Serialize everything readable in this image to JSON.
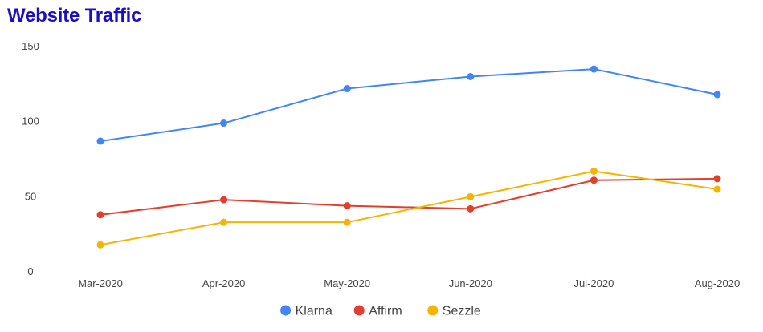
{
  "chart_data": {
    "type": "line",
    "title": "Website Traffic",
    "xlabel": "",
    "ylabel": "",
    "categories": [
      "Mar-2020",
      "Apr-2020",
      "May-2020",
      "Jun-2020",
      "Jul-2020",
      "Aug-2020"
    ],
    "ylim": [
      0,
      150
    ],
    "yticks": [
      0,
      50,
      100,
      150
    ],
    "grid": false,
    "legend_position": "bottom",
    "series": [
      {
        "name": "Klarna",
        "color": "#4285f4",
        "values": [
          87,
          99,
          122,
          130,
          135,
          118
        ]
      },
      {
        "name": "Affirm",
        "color": "#e0402d",
        "values": [
          38,
          48,
          44,
          42,
          61,
          62
        ]
      },
      {
        "name": "Sezzle",
        "color": "#f4b400",
        "values": [
          18,
          33,
          33,
          50,
          67,
          55
        ]
      }
    ]
  }
}
